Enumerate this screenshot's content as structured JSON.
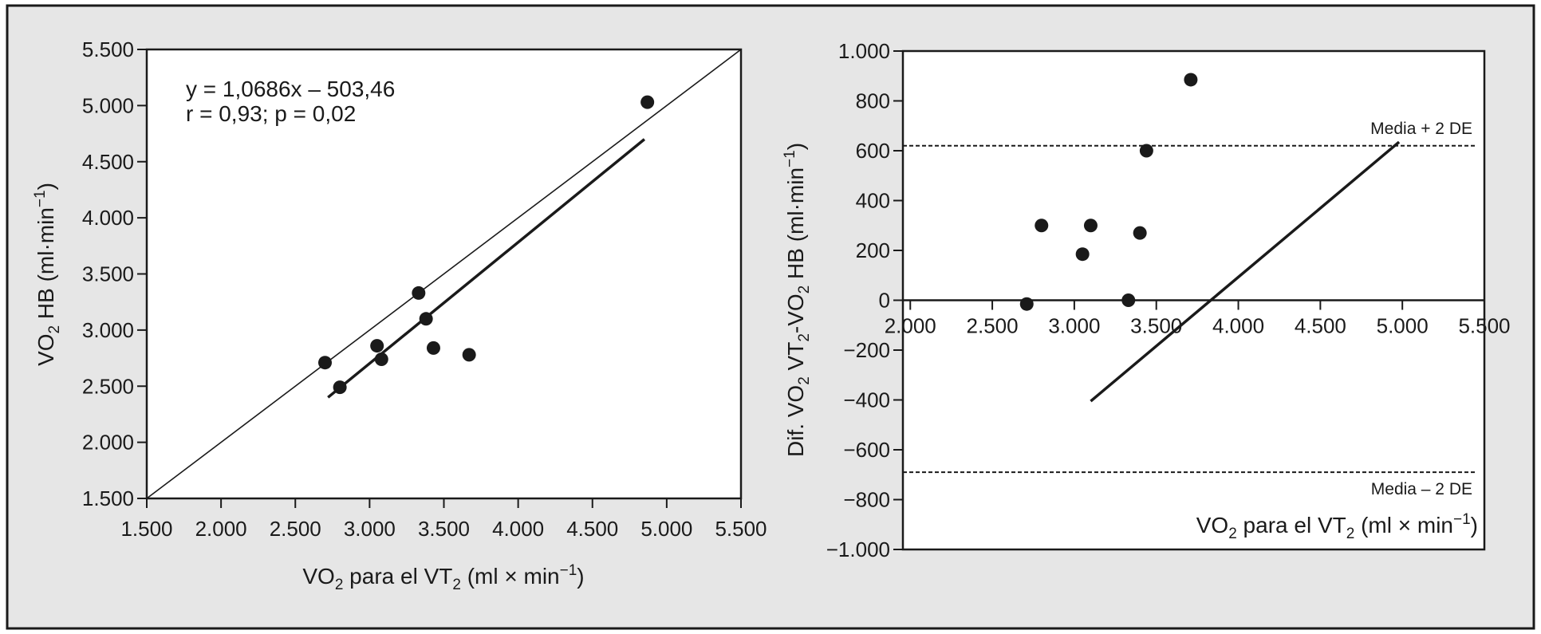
{
  "colors": {
    "background": "#e6e6e6",
    "plot_bg": "#ffffff",
    "ink": "#1a1a1a"
  },
  "chart_data": [
    {
      "type": "scatter",
      "xlabel": {
        "main": "VO",
        "sub1": "2",
        "mid": " para el VT",
        "sub2": "2",
        "unit": " (ml × min",
        "sup": "−1",
        "close": ")"
      },
      "ylabel": {
        "main": "VO",
        "sub1": "2",
        "mid": " HB (ml·min",
        "sup": "−1",
        "close": ")"
      },
      "xlim": [
        1500,
        5500
      ],
      "ylim": [
        1500,
        5500
      ],
      "xticks": [
        1500,
        2000,
        2500,
        3000,
        3500,
        4000,
        4500,
        5000,
        5500
      ],
      "xtick_labels": [
        "1.500",
        "2.000",
        "2.500",
        "3.000",
        "3.500",
        "4.000",
        "4.500",
        "5.000",
        "5.500"
      ],
      "yticks": [
        1500,
        2000,
        2500,
        3000,
        3500,
        4000,
        4500,
        5000,
        5500
      ],
      "ytick_labels": [
        "1.500",
        "2.000",
        "2.500",
        "3.000",
        "3.500",
        "4.000",
        "4.500",
        "5.000",
        "5.500"
      ],
      "points": [
        {
          "x": 2700,
          "y": 2710
        },
        {
          "x": 2800,
          "y": 2490
        },
        {
          "x": 3050,
          "y": 2860
        },
        {
          "x": 3080,
          "y": 2740
        },
        {
          "x": 3330,
          "y": 3330
        },
        {
          "x": 3380,
          "y": 3100
        },
        {
          "x": 3430,
          "y": 2840
        },
        {
          "x": 3670,
          "y": 2780
        },
        {
          "x": 4870,
          "y": 5030
        }
      ],
      "identity_line": {
        "x": [
          1500,
          5500
        ],
        "y": [
          1500,
          5500
        ]
      },
      "regression_line": {
        "x": [
          2720,
          4850
        ],
        "y": [
          2400,
          4700
        ]
      },
      "annotations": [
        "y = 1,0686x – 503,46",
        "r = 0,93; p = 0,02"
      ],
      "grid": false
    },
    {
      "type": "scatter",
      "xlabel": {
        "main": "VO",
        "sub1": "2",
        "mid": "  para el VT",
        "sub2": "2",
        "unit": " (ml × min",
        "sup": "−1",
        "close": ")"
      },
      "ylabel": {
        "main": "Dif. VO",
        "sub1": "2",
        "mid": "  VT",
        "sub2": "2",
        "mid2": "-VO",
        "sub3": "2",
        "mid3": " HB (ml·min",
        "sup": "−1",
        "close": ")"
      },
      "xlim": [
        1955,
        5500
      ],
      "ylim": [
        -1000,
        1000
      ],
      "xticks": [
        2000,
        2500,
        3000,
        3500,
        4000,
        4500,
        5000,
        5500
      ],
      "xtick_labels": [
        "2.000",
        "2.500",
        "3.000",
        "3.500",
        "4.000",
        "4.500",
        "5.000",
        "5.500"
      ],
      "yticks": [
        -1000,
        -800,
        -600,
        -400,
        -200,
        0,
        200,
        400,
        600,
        800,
        1000
      ],
      "ytick_labels": [
        "−1.000",
        "−800",
        "−600",
        "−400",
        "−200",
        "0",
        "200",
        "400",
        "600",
        "800",
        "1.000"
      ],
      "points": [
        {
          "x": 2710,
          "y": -15
        },
        {
          "x": 2800,
          "y": 300
        },
        {
          "x": 3050,
          "y": 185
        },
        {
          "x": 3100,
          "y": 300
        },
        {
          "x": 3330,
          "y": 0
        },
        {
          "x": 3400,
          "y": 270
        },
        {
          "x": 3440,
          "y": 600
        },
        {
          "x": 3710,
          "y": 885
        }
      ],
      "reference_lines": [
        {
          "y": 620,
          "label": "Media + 2 DE"
        },
        {
          "y": -690,
          "label": "Media – 2 DE"
        }
      ],
      "zero_line": 0,
      "regression_line": {
        "x": [
          3100,
          4980
        ],
        "y": [
          -405,
          635
        ]
      },
      "grid": false
    }
  ]
}
